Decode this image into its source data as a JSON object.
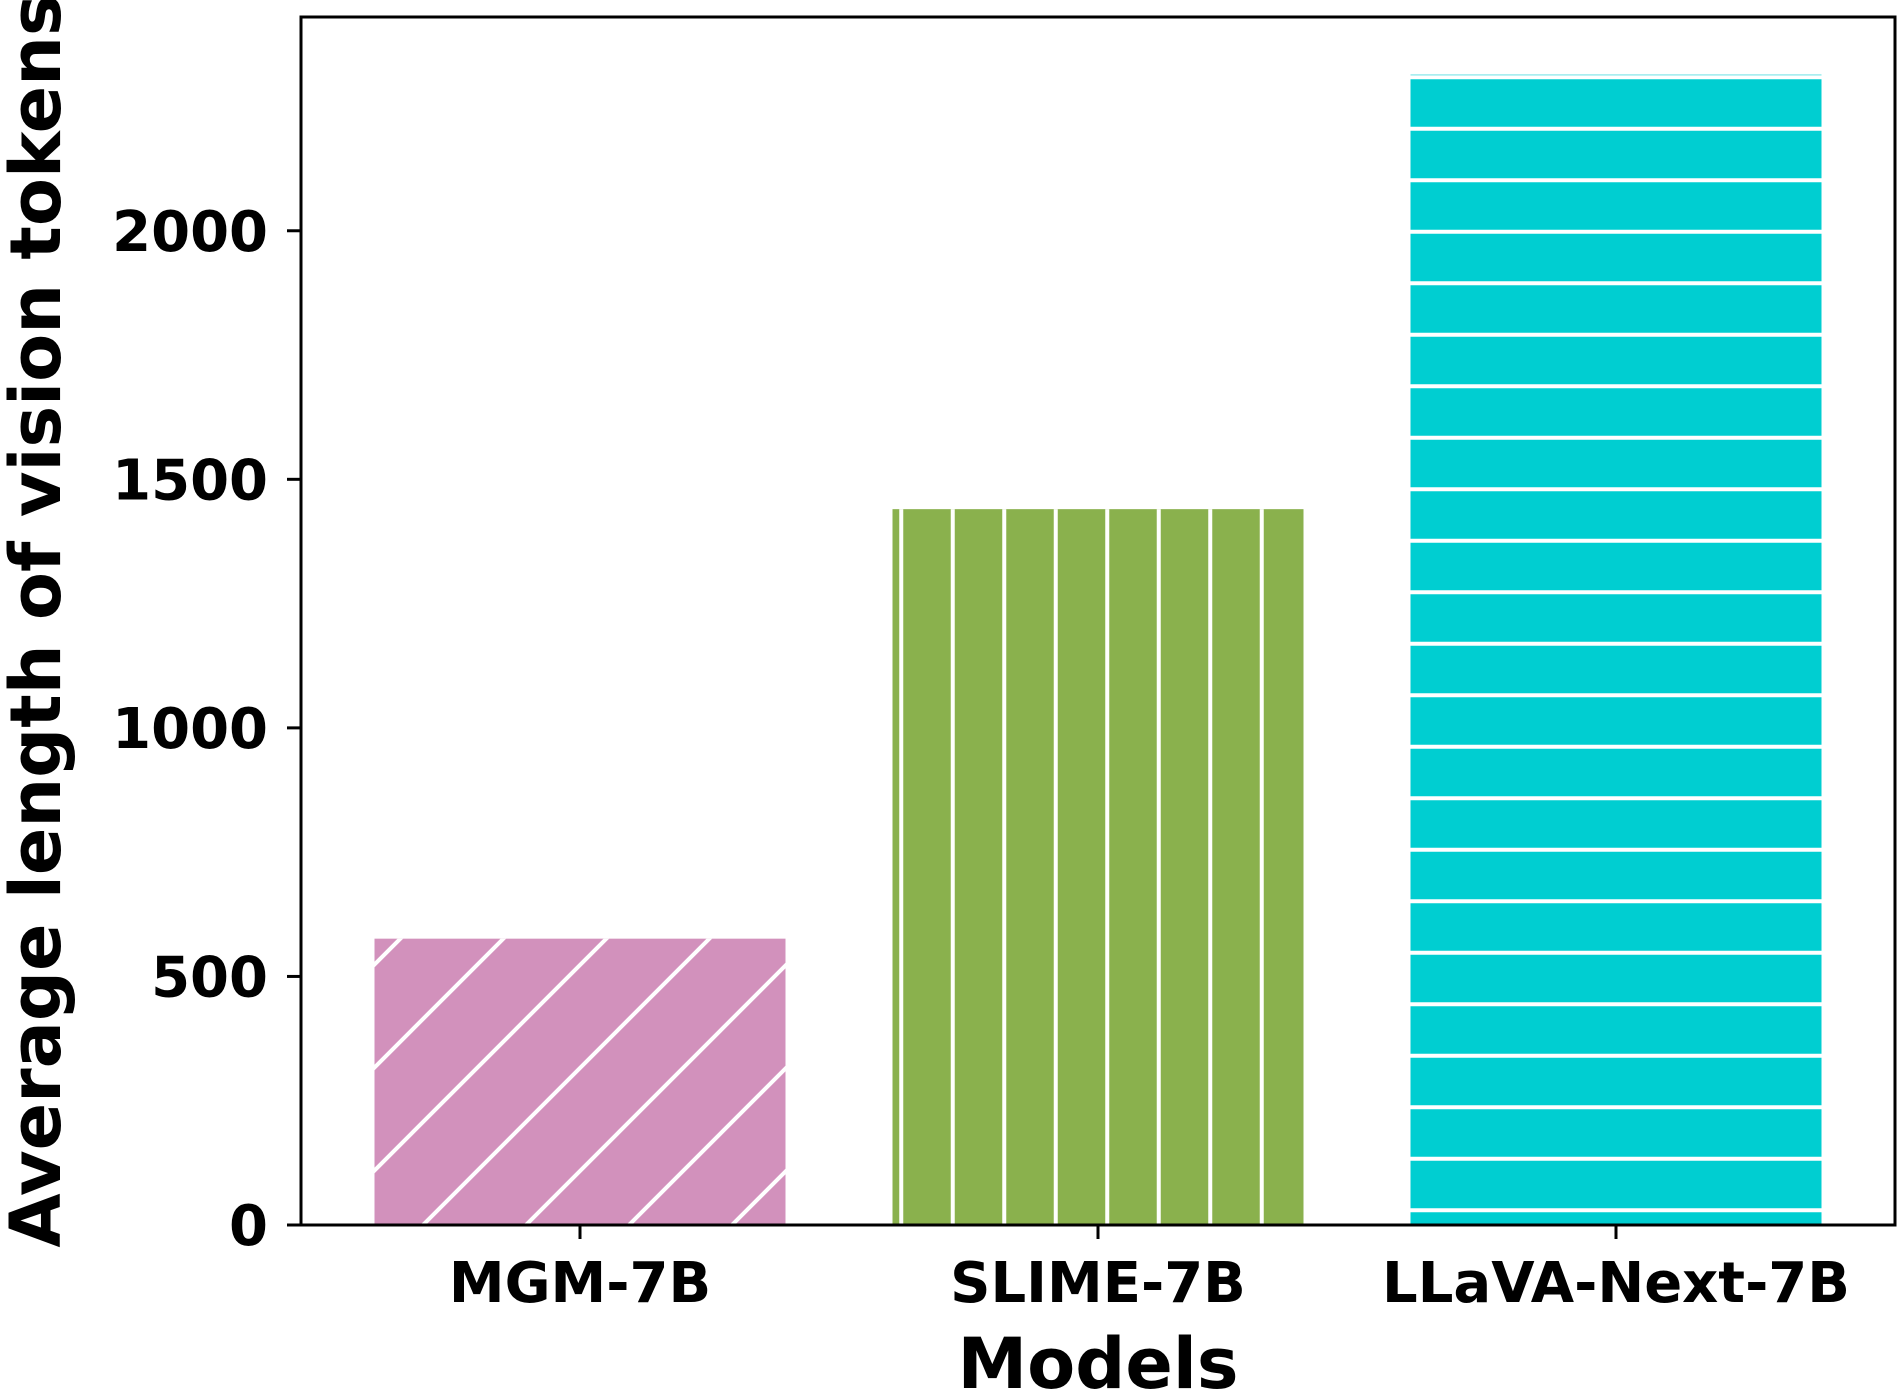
{
  "chart_data": {
    "type": "bar",
    "title": "",
    "xlabel": "Models",
    "ylabel": "Average length of vision tokens",
    "categories": [
      "MGM-7B",
      "SLIME-7B",
      "LLaVA-Next-7B"
    ],
    "values": [
      576,
      1440,
      2314
    ],
    "ylim": [
      0,
      2430
    ],
    "yticks": [
      0,
      500,
      1000,
      1500,
      2000
    ],
    "ytick_labels": [
      "0",
      "500",
      "1000",
      "1500",
      "2000"
    ],
    "colors": [
      "#d291bc",
      "#8ab14d",
      "#00ced1"
    ],
    "hatches": [
      "diagonal",
      "vertical",
      "horizontal"
    ],
    "grid": false,
    "legend": "none"
  }
}
